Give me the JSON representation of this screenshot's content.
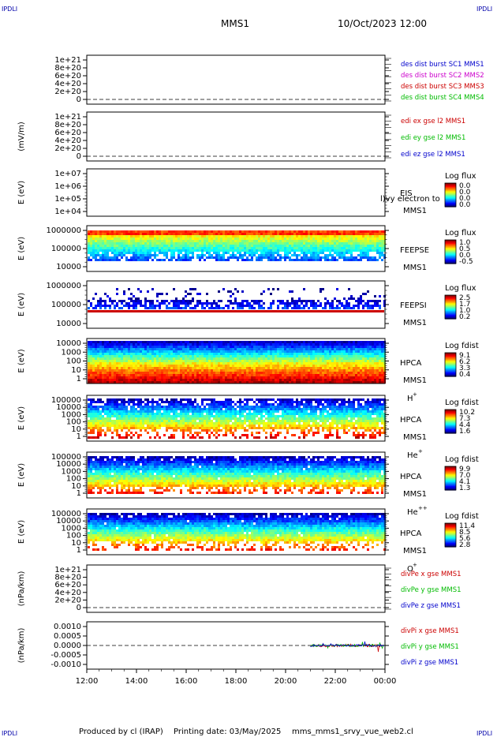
{
  "header": {
    "logo_left": "IPDLI",
    "logo_right": "IPDLI",
    "mission": "MMS1",
    "date": "10/Oct/2023 12:00",
    "logo_bottom_left": "IPDLI",
    "logo_bottom_right": "IPDLI"
  },
  "footer": {
    "produced_by": "Produced by cl (IRAP)",
    "printing_date": "Printing date: 03/May/2025",
    "script_name": "mms_mms1_srvy_vue_web2.cl"
  },
  "colors": {
    "red": "#cc0000",
    "green": "#00bb00",
    "blue": "#0000cc",
    "magenta": "#cc00cc"
  },
  "chart_data": [
    {
      "type": "line",
      "panel": "des-dist",
      "ylabel": "",
      "yticks": [
        "1e+21",
        "8e+20",
        "6e+20",
        "4e+20",
        "2e+20",
        "0"
      ],
      "legend": [
        {
          "text": "des dist burst SC1 MMS1",
          "color": "blue"
        },
        {
          "text": "des dist burst SC2 MMS2",
          "color": "magenta"
        },
        {
          "text": "des dist burst SC3 MMS3",
          "color": "red"
        },
        {
          "text": "des dist burst SC4 MMS4",
          "color": "green"
        }
      ],
      "series": []
    },
    {
      "type": "line",
      "panel": "edi",
      "ylabel": "(mV/m)",
      "yticks": [
        "1e+21",
        "8e+20",
        "6e+20",
        "4e+20",
        "2e+20",
        "0"
      ],
      "legend": [
        {
          "text": "edi ex gse l2 MMS1",
          "color": "red"
        },
        {
          "text": "edi ey gse l2 MMS1",
          "color": "green"
        },
        {
          "text": "edi ez gse l2 MMS1",
          "color": "blue"
        }
      ],
      "series": []
    },
    {
      "type": "heatmap",
      "panel": "eis",
      "ylabel": "E (eV)",
      "yticks": [
        "1e+07",
        "1e+06",
        "1e+05",
        "1e+04"
      ],
      "labels": [
        "EIS",
        "MMS1"
      ],
      "overlay_text": "l)vy electron to",
      "cbar_title": "Log flux",
      "cbar_ticks": [
        "0.0",
        "0.0",
        "0.0",
        "0.0"
      ],
      "fill": "empty"
    },
    {
      "type": "heatmap",
      "panel": "feepse",
      "ylabel": "E (eV)",
      "yticks": [
        "1000000",
        "100000",
        "10000"
      ],
      "labels": [
        "FEEPSE",
        "MMS1"
      ],
      "cbar_title": "Log flux",
      "cbar_ticks": [
        "1.0",
        "0.5",
        "0.0",
        "-0.5"
      ],
      "fill": "feepse"
    },
    {
      "type": "heatmap",
      "panel": "feepsi",
      "ylabel": "E (eV)",
      "yticks": [
        "1000000",
        "100000",
        "10000"
      ],
      "labels": [
        "FEEPSI",
        "MMS1"
      ],
      "cbar_title": "Log flux",
      "cbar_ticks": [
        "2.5",
        "1.7",
        "1.0",
        "0.2"
      ],
      "fill": "feepsi"
    },
    {
      "type": "heatmap",
      "panel": "hpca-h",
      "ylabel": "E (eV)",
      "yticks": [
        "10000",
        "1000",
        "100",
        "10",
        "1"
      ],
      "labels": [
        "HPCA",
        "MMS1"
      ],
      "species": "H",
      "species_sup": "+",
      "cbar_title": "Log fdist",
      "cbar_ticks": [
        "9.1",
        "6.2",
        "3.3",
        "0.4"
      ],
      "fill": "hpca_h"
    },
    {
      "type": "heatmap",
      "panel": "hpca-he",
      "ylabel": "E (eV)",
      "yticks": [
        "100000",
        "10000",
        "1000",
        "100",
        "10",
        "1"
      ],
      "labels": [
        "HPCA",
        "MMS1"
      ],
      "species": "He",
      "species_sup": "+",
      "cbar_title": "Log fdist",
      "cbar_ticks": [
        "10.2",
        "7.3",
        "4.4",
        "1.6"
      ],
      "fill": "hpca_he"
    },
    {
      "type": "heatmap",
      "panel": "hpca-he2",
      "ylabel": "E (eV)",
      "yticks": [
        "100000",
        "10000",
        "1000",
        "100",
        "10",
        "1"
      ],
      "labels": [
        "HPCA",
        "MMS1"
      ],
      "species": "He",
      "species_sup": "++",
      "cbar_title": "Log fdist",
      "cbar_ticks": [
        "9.9",
        "7.0",
        "4.1",
        "1.3"
      ],
      "fill": "hpca_he2"
    },
    {
      "type": "heatmap",
      "panel": "hpca-o",
      "ylabel": "E (eV)",
      "yticks": [
        "100000",
        "10000",
        "1000",
        "100",
        "10",
        "1"
      ],
      "labels": [
        "HPCA",
        "MMS1"
      ],
      "species": "O",
      "species_sup": "+",
      "cbar_title": "Log fdist",
      "cbar_ticks": [
        "11.4",
        "8.5",
        "5.6",
        "2.8"
      ],
      "fill": "hpca_o"
    },
    {
      "type": "line",
      "panel": "divpe",
      "ylabel": "(nPa/km)",
      "yticks": [
        "1e+21",
        "8e+20",
        "6e+20",
        "4e+20",
        "2e+20",
        "0"
      ],
      "legend": [
        {
          "text": "divPe x gse MMS1",
          "color": "red"
        },
        {
          "text": "divPe y gse MMS1",
          "color": "green"
        },
        {
          "text": "divPe z gse MMS1",
          "color": "blue"
        }
      ],
      "series": []
    },
    {
      "type": "line",
      "panel": "divpi",
      "ylabel": "(nPa/km)",
      "yticks": [
        "0.0010",
        "0.0005",
        "0.0000",
        "-0.0005",
        "-0.0010"
      ],
      "ylim": [
        -0.0012,
        0.0012
      ],
      "legend": [
        {
          "text": "divPi x gse MMS1",
          "color": "red"
        },
        {
          "text": "divPi y gse MMS1",
          "color": "green"
        },
        {
          "text": "divPi z gse MMS1",
          "color": "blue"
        }
      ],
      "data_start_hour": 21.0,
      "series": [
        {
          "color": "red",
          "amplitude": 7e-05
        },
        {
          "color": "green",
          "amplitude": 6e-05
        },
        {
          "color": "blue",
          "amplitude": 5e-05
        }
      ]
    }
  ],
  "xaxis": {
    "ticks": [
      "12:00",
      "14:00",
      "16:00",
      "18:00",
      "20:00",
      "22:00",
      "00:00"
    ],
    "range_hours": [
      12,
      24
    ]
  }
}
